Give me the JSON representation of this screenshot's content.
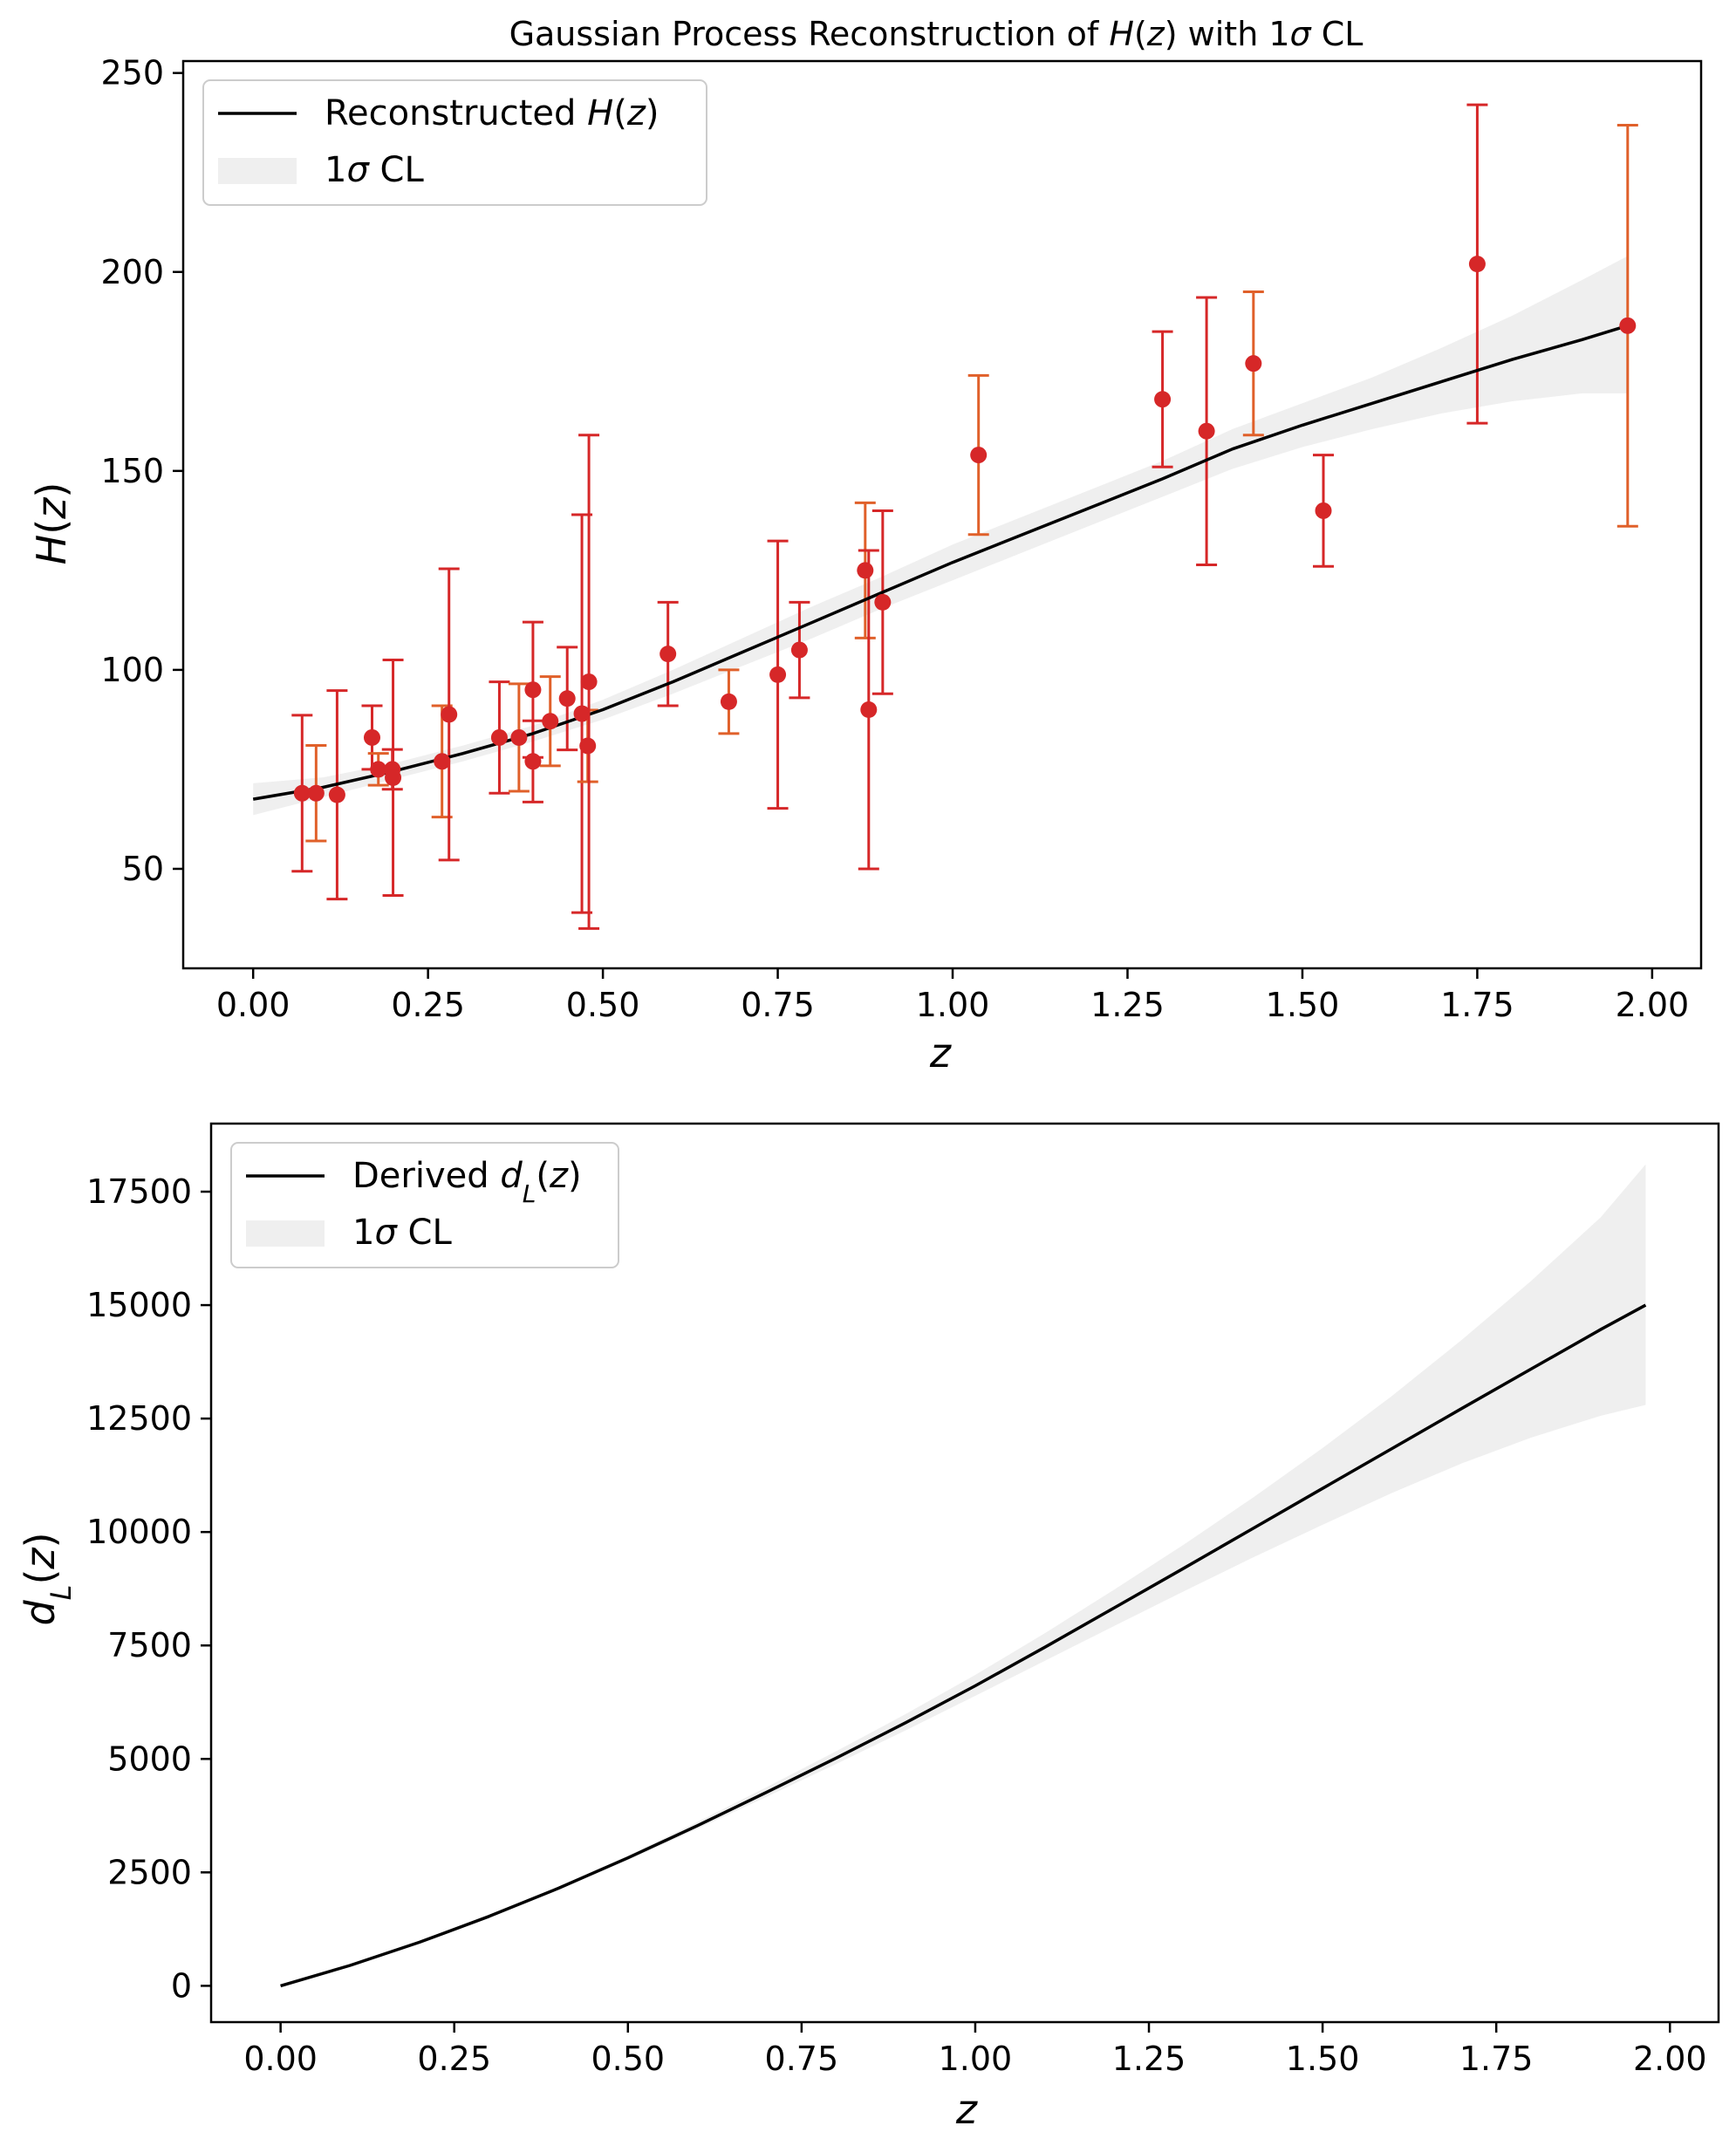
{
  "chart_data": [
    {
      "type": "scatter",
      "title_parts": [
        "Gaussian Process Reconstruction of ",
        "H",
        "(",
        "z",
        ") with 1",
        "σ",
        " CL"
      ],
      "xlabel": "z",
      "ylabel_parts": [
        "H",
        "(",
        "z",
        ")"
      ],
      "xlim": [
        -0.1,
        2.07
      ],
      "ylim": [
        25,
        253
      ],
      "xticks": [
        0.0,
        0.25,
        0.5,
        0.75,
        1.0,
        1.25,
        1.5,
        1.75,
        2.0
      ],
      "xtick_labels": [
        "0.00",
        "0.25",
        "0.50",
        "0.75",
        "1.00",
        "1.25",
        "1.50",
        "1.75",
        "2.00"
      ],
      "yticks": [
        50,
        100,
        150,
        200,
        250
      ],
      "ytick_labels": [
        "50",
        "100",
        "150",
        "200",
        "250"
      ],
      "legend_position": "top-left",
      "legend": {
        "line_parts": [
          "Reconstructed ",
          "H",
          "(",
          "z",
          ")"
        ],
        "band_parts": [
          "1",
          "σ",
          " CL"
        ]
      },
      "colors": {
        "line": "#000000",
        "band": "#efefef",
        "points": "#d62728",
        "errorbars": "#d62728",
        "errorbars_alt": "#e0602a"
      },
      "line": {
        "x": [
          0.0,
          0.1,
          0.2,
          0.3,
          0.4,
          0.5,
          0.6,
          0.7,
          0.8,
          0.9,
          1.0,
          1.1,
          1.2,
          1.3,
          1.4,
          1.5,
          1.6,
          1.7,
          1.8,
          1.9,
          1.965
        ],
        "y": [
          67.5,
          70.5,
          74.5,
          79.0,
          84.0,
          90.0,
          97.0,
          104.5,
          112.0,
          119.5,
          127.0,
          134.0,
          141.0,
          148.0,
          155.5,
          161.5,
          167.0,
          172.5,
          178.0,
          183.0,
          186.5
        ]
      },
      "band": {
        "x": [
          0.0,
          0.1,
          0.2,
          0.3,
          0.4,
          0.5,
          0.6,
          0.7,
          0.8,
          0.9,
          1.0,
          1.1,
          1.2,
          1.3,
          1.4,
          1.5,
          1.6,
          1.7,
          1.8,
          1.9,
          1.965
        ],
        "lower": [
          63.5,
          68.0,
          72.5,
          77.0,
          82.0,
          87.5,
          94.0,
          101.0,
          108.0,
          115.5,
          122.5,
          129.5,
          136.5,
          143.5,
          150.5,
          156.0,
          160.5,
          164.5,
          167.5,
          169.5,
          169.5
        ],
        "upper": [
          71.5,
          73.0,
          76.5,
          81.0,
          86.0,
          92.5,
          100.0,
          108.0,
          116.0,
          123.5,
          131.5,
          138.5,
          145.5,
          152.5,
          160.5,
          167.0,
          173.5,
          181.0,
          189.0,
          198.0,
          204.0
        ]
      },
      "points": {
        "x": [
          0.07,
          0.09,
          0.12,
          0.17,
          0.179,
          0.199,
          0.2,
          0.27,
          0.28,
          0.352,
          0.38,
          0.4,
          0.4,
          0.4247,
          0.449,
          0.47,
          0.4783,
          0.48,
          0.593,
          0.68,
          0.75,
          0.781,
          0.875,
          0.88,
          0.9,
          1.037,
          1.3,
          1.363,
          1.43,
          1.53,
          1.75,
          1.965
        ],
        "y": [
          69,
          69,
          68.6,
          83,
          75,
          75,
          72.9,
          77,
          88.8,
          83,
          83,
          95,
          77,
          87.1,
          92.8,
          89,
          80.9,
          97,
          104,
          92,
          98.8,
          105,
          125,
          90,
          117,
          154,
          168,
          160,
          177,
          140,
          202,
          186.5
        ],
        "err": [
          19.6,
          12,
          26.2,
          8,
          4,
          5,
          29.6,
          14,
          36.6,
          14,
          13.5,
          17,
          10.2,
          11.2,
          12.9,
          50,
          9,
          62,
          13,
          8,
          33.6,
          12,
          17,
          40,
          23,
          20,
          17,
          33.6,
          18,
          14,
          40,
          50.4
        ]
      }
    },
    {
      "type": "line",
      "xlabel": "z",
      "ylabel_parts": [
        "d",
        "L",
        "(",
        "z",
        ")"
      ],
      "xlim": [
        -0.1,
        2.07
      ],
      "ylim": [
        -800,
        19000
      ],
      "xticks": [
        0.0,
        0.25,
        0.5,
        0.75,
        1.0,
        1.25,
        1.5,
        1.75,
        2.0
      ],
      "xtick_labels": [
        "0.00",
        "0.25",
        "0.50",
        "0.75",
        "1.00",
        "1.25",
        "1.50",
        "1.75",
        "2.00"
      ],
      "yticks": [
        0,
        2500,
        5000,
        7500,
        10000,
        12500,
        15000,
        17500
      ],
      "ytick_labels": [
        "0",
        "2500",
        "5000",
        "7500",
        "10000",
        "12500",
        "15000",
        "17500"
      ],
      "legend_position": "top-left",
      "legend": {
        "line_parts": [
          "Derived ",
          "d",
          "L",
          "(",
          "z",
          ")"
        ],
        "band_parts": [
          "1",
          "σ",
          " CL"
        ]
      },
      "colors": {
        "line": "#000000",
        "band": "#efefef"
      },
      "line": {
        "x": [
          0.0,
          0.1,
          0.2,
          0.3,
          0.4,
          0.5,
          0.6,
          0.7,
          0.8,
          0.9,
          1.0,
          1.1,
          1.2,
          1.3,
          1.4,
          1.5,
          1.6,
          1.7,
          1.8,
          1.9,
          1.965
        ],
        "y": [
          0,
          450,
          960,
          1530,
          2150,
          2820,
          3530,
          4270,
          5020,
          5800,
          6610,
          7460,
          8330,
          9200,
          10080,
          10960,
          11840,
          12720,
          13590,
          14460,
          15000
        ]
      },
      "band": {
        "x": [
          0.0,
          0.1,
          0.2,
          0.3,
          0.4,
          0.5,
          0.6,
          0.7,
          0.8,
          0.9,
          1.0,
          1.1,
          1.2,
          1.3,
          1.4,
          1.5,
          1.6,
          1.7,
          1.8,
          1.9,
          1.965
        ],
        "lower": [
          0,
          445,
          950,
          1510,
          2120,
          2770,
          3460,
          4170,
          4890,
          5630,
          6390,
          7160,
          7930,
          8690,
          9440,
          10160,
          10860,
          11510,
          12080,
          12560,
          12800
        ],
        "upper": [
          0,
          455,
          970,
          1550,
          2180,
          2870,
          3610,
          4380,
          5170,
          5990,
          6850,
          7770,
          8730,
          9720,
          10760,
          11850,
          13000,
          14230,
          15530,
          16930,
          18100
        ]
      }
    }
  ]
}
